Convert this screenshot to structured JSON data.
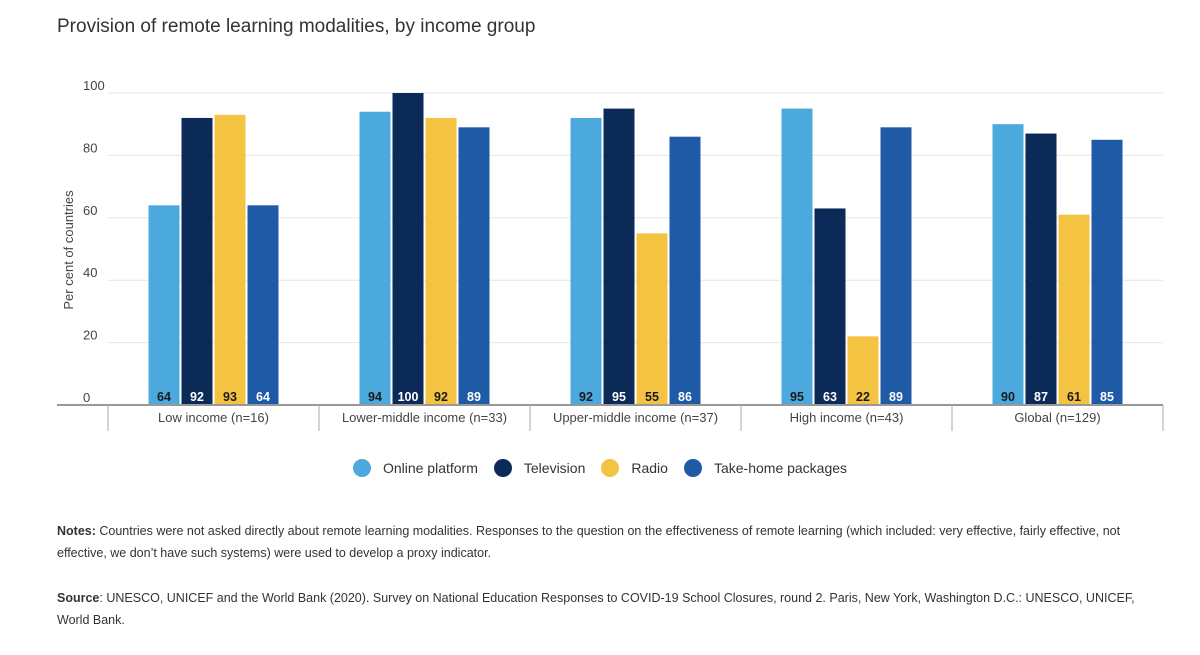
{
  "title": "Provision of remote learning modalities, by income group",
  "chart_data": {
    "type": "bar",
    "title": "Provision of remote learning modalities, by income group",
    "ylabel": "Per cent of countries",
    "xlabel": "",
    "ylim": [
      0,
      100
    ],
    "yticks": [
      0,
      20,
      40,
      60,
      80,
      100
    ],
    "grid": true,
    "legend_position": "bottom",
    "categories": [
      "Low income (n=16)",
      "Lower-middle income (n=33)",
      "Upper-middle income (n=37)",
      "High income (n=43)",
      "Global (n=129)"
    ],
    "series": [
      {
        "name": "Online platform",
        "color": "#4ba9de",
        "values": [
          64,
          94,
          92,
          95,
          90
        ]
      },
      {
        "name": "Television",
        "color": "#0c2a57",
        "values": [
          92,
          100,
          95,
          63,
          87
        ]
      },
      {
        "name": "Radio",
        "color": "#f5c342",
        "values": [
          93,
          92,
          55,
          22,
          61
        ]
      },
      {
        "name": "Take-home packages",
        "color": "#1f5aa6",
        "values": [
          64,
          89,
          86,
          89,
          85
        ]
      }
    ]
  },
  "notes": {
    "label": "Notes:",
    "text": " Countries were not asked directly about remote learning modalities. Responses to the question on the effectiveness of remote learning (which included: very effective, fairly effective, not effective, we don’t have such systems) were used to develop a proxy indicator."
  },
  "source": {
    "label": "Source",
    "text": ": UNESCO, UNICEF and the World Bank (2020). Survey on National Education Responses to COVID-19 School Closures, round 2. Paris, New York, Washington D.C.: UNESCO, UNICEF, World Bank."
  }
}
